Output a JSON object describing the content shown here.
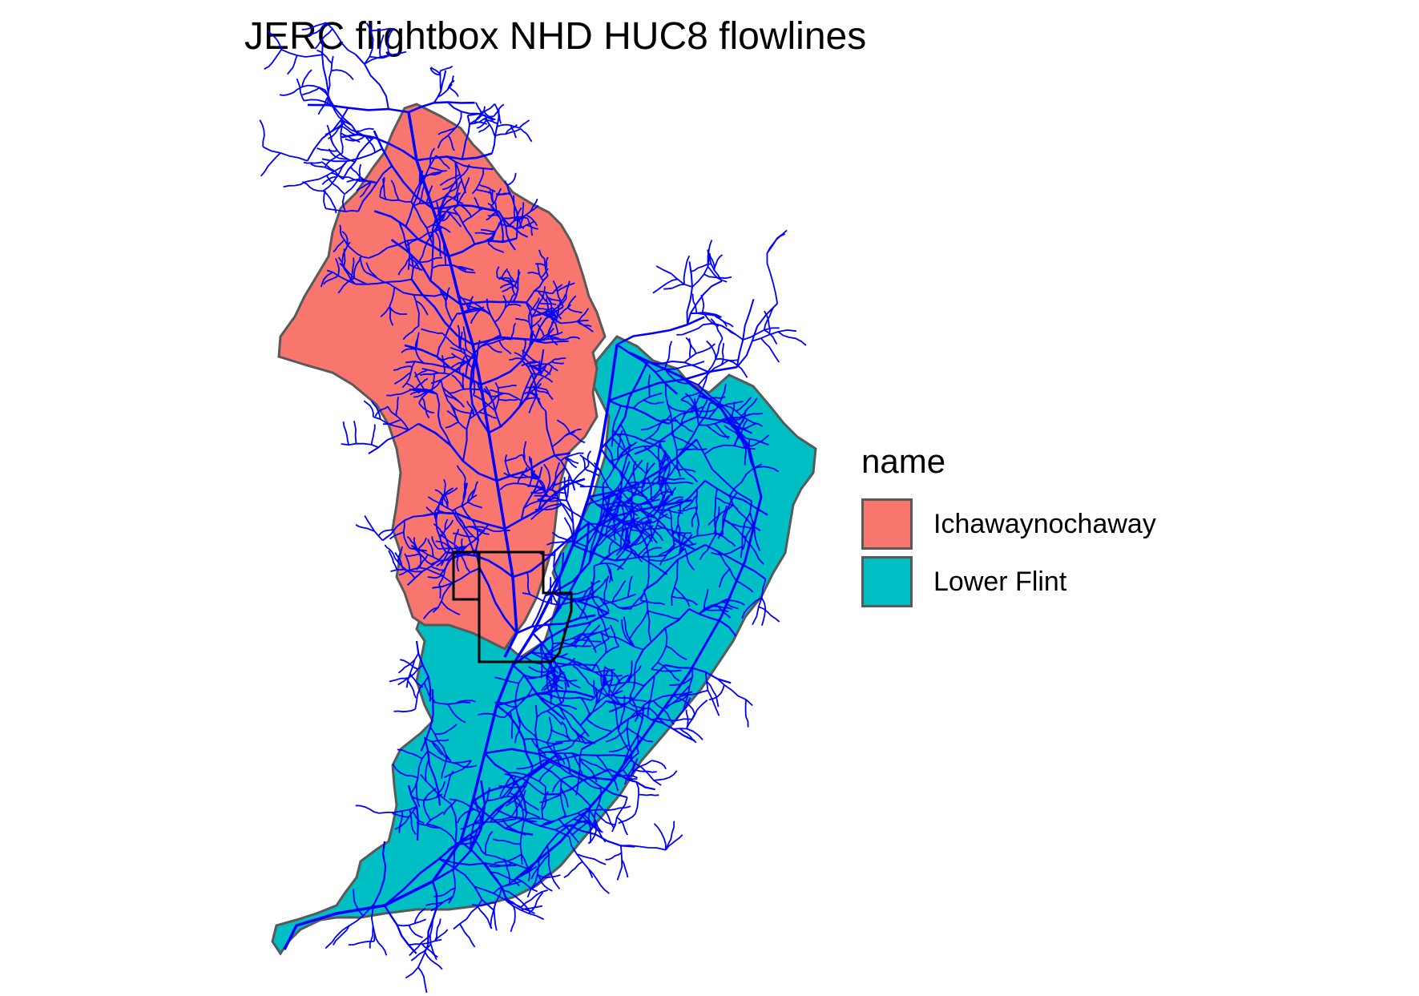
{
  "title": "JERC flightbox NHD HUC8 flowlines",
  "legend": {
    "title": "name",
    "items": [
      {
        "label": "Ichawaynochaway",
        "color": "#F8766D"
      },
      {
        "label": "Lower Flint",
        "color": "#00BFC4"
      }
    ]
  },
  "colors": {
    "flowlines": "#0000FF",
    "boundary_outline": "#595959",
    "flightbox": "#000000"
  }
}
